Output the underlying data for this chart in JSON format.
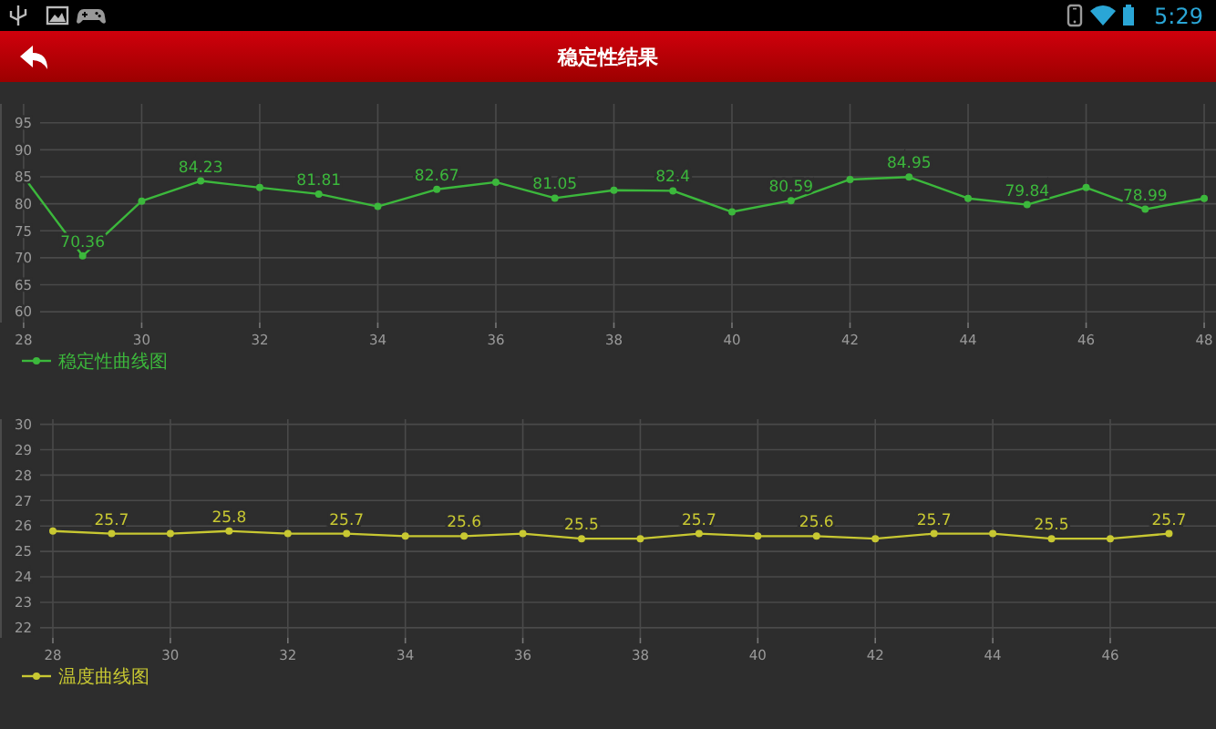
{
  "chart_data": [
    {
      "type": "line",
      "title": "稳定性结果",
      "annotations": [
        "5:29"
      ],
      "x": [
        28,
        29,
        30,
        31,
        32,
        33,
        34,
        35,
        36,
        37,
        38,
        39,
        40,
        41,
        42,
        43,
        44,
        45,
        46,
        47,
        48
      ],
      "xlim": [
        27.6,
        48.2
      ],
      "xticks": [
        28,
        30,
        32,
        34,
        36,
        38,
        40,
        42,
        44,
        46,
        48
      ],
      "ylim": [
        58,
        98.5
      ],
      "yticks": [
        60,
        65,
        70,
        75,
        80,
        85,
        90,
        95
      ],
      "grid": true,
      "legend": "bottom left",
      "marker": "circle",
      "line_style": "solid",
      "series": [
        {
          "name": "稳定性曲线图",
          "color": "#3cb83c",
          "values": [
            85,
            70.36,
            80.5,
            84.23,
            83,
            81.81,
            79.5,
            82.67,
            84,
            81.05,
            82.5,
            82.4,
            78.5,
            80.59,
            84.5,
            84.95,
            81,
            79.84,
            83,
            78.99,
            81
          ],
          "value_labels": [
            null,
            "70.36",
            null,
            "84.23",
            null,
            "81.81",
            null,
            "82.67",
            null,
            "81.05",
            null,
            "82.4",
            null,
            "80.59",
            null,
            "84.95",
            null,
            "79.84",
            null,
            "78.99",
            null
          ]
        }
      ]
    },
    {
      "type": "line",
      "x": [
        28,
        29,
        30,
        31,
        32,
        33,
        34,
        35,
        36,
        37,
        38,
        39,
        40,
        41,
        42,
        43,
        44,
        45,
        46,
        47
      ],
      "xlim": [
        27.1,
        47.8
      ],
      "xticks": [
        28,
        30,
        32,
        34,
        36,
        38,
        40,
        42,
        44,
        46
      ],
      "ylim": [
        21.6,
        30.2
      ],
      "yticks": [
        22,
        23,
        24,
        25,
        26,
        27,
        28,
        29,
        30
      ],
      "grid": true,
      "legend": "bottom left",
      "marker": "circle",
      "line_style": "solid",
      "series": [
        {
          "name": "温度曲线图",
          "color": "#c8c832",
          "values": [
            25.8,
            25.7,
            25.7,
            25.8,
            25.7,
            25.7,
            25.6,
            25.6,
            25.7,
            25.5,
            25.5,
            25.7,
            25.6,
            25.6,
            25.5,
            25.7,
            25.7,
            25.5,
            25.5,
            25.7
          ],
          "value_labels": [
            null,
            "25.7",
            null,
            "25.8",
            null,
            "25.7",
            null,
            "25.6",
            null,
            "25.5",
            null,
            "25.7",
            null,
            "25.6",
            null,
            "25.7",
            null,
            "25.5",
            null,
            "25.7"
          ]
        }
      ]
    }
  ]
}
